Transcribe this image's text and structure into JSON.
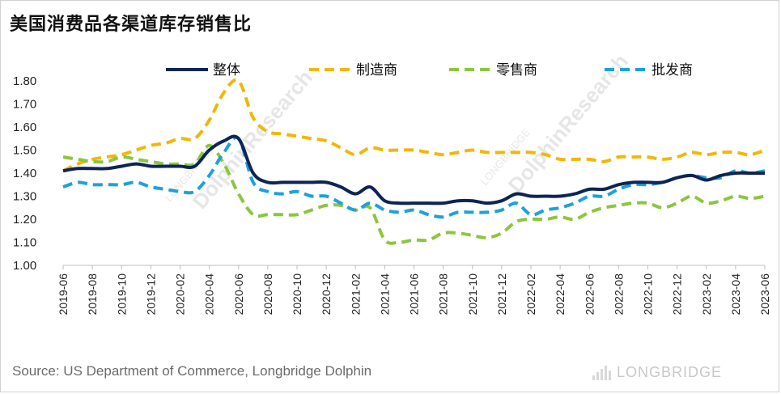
{
  "title": "美国消费品各渠道库存销售比",
  "source": "Source: US Department of Commerce, Longbridge Dolphin",
  "brand": "LONGBRIDGE",
  "watermark_main": "DolphinResearch",
  "watermark_sub": "LONGBRIDGE",
  "chart_data": {
    "type": "line",
    "title": "美国消费品各渠道库存销售比",
    "xlabel": "",
    "ylabel": "",
    "ylim": [
      1.0,
      1.8
    ],
    "yticks": [
      "1.00",
      "1.10",
      "1.20",
      "1.30",
      "1.40",
      "1.50",
      "1.60",
      "1.70",
      "1.80"
    ],
    "legend_position": "top",
    "grid": false,
    "x": [
      "2019-06",
      "2019-07",
      "2019-08",
      "2019-09",
      "2019-10",
      "2019-11",
      "2019-12",
      "2020-01",
      "2020-02",
      "2020-03",
      "2020-04",
      "2020-05",
      "2020-06",
      "2020-07",
      "2020-08",
      "2020-09",
      "2020-10",
      "2020-11",
      "2020-12",
      "2021-01",
      "2021-02",
      "2021-03",
      "2021-04",
      "2021-05",
      "2021-06",
      "2021-07",
      "2021-08",
      "2021-09",
      "2021-10",
      "2021-11",
      "2021-12",
      "2022-01",
      "2022-02",
      "2022-03",
      "2022-04",
      "2022-05",
      "2022-06",
      "2022-07",
      "2022-08",
      "2022-09",
      "2022-10",
      "2022-11",
      "2022-12",
      "2023-01",
      "2023-02",
      "2023-03",
      "2023-04",
      "2023-05",
      "2023-06"
    ],
    "xticks": [
      "2019-06",
      "2019-08",
      "2019-10",
      "2019-12",
      "2020-02",
      "2020-04",
      "2020-06",
      "2020-08",
      "2020-10",
      "2020-12",
      "2021-02",
      "2021-04",
      "2021-06",
      "2021-08",
      "2021-10",
      "2021-12",
      "2022-02",
      "2022-04",
      "2022-06",
      "2022-08",
      "2022-10",
      "2022-12",
      "2023-02",
      "2023-04",
      "2023-06"
    ],
    "series": [
      {
        "name": "整体",
        "color": "#0d2456",
        "dash": "solid",
        "values": [
          1.41,
          1.42,
          1.42,
          1.42,
          1.43,
          1.44,
          1.43,
          1.43,
          1.43,
          1.43,
          1.5,
          1.54,
          1.55,
          1.4,
          1.36,
          1.36,
          1.36,
          1.36,
          1.36,
          1.34,
          1.31,
          1.34,
          1.28,
          1.27,
          1.27,
          1.27,
          1.27,
          1.28,
          1.28,
          1.27,
          1.28,
          1.31,
          1.3,
          1.3,
          1.3,
          1.31,
          1.33,
          1.33,
          1.35,
          1.36,
          1.36,
          1.36,
          1.38,
          1.39,
          1.37,
          1.39,
          1.4,
          1.4,
          1.4
        ]
      },
      {
        "name": "制造商",
        "color": "#f2b705",
        "dash": "dashed",
        "values": [
          1.41,
          1.44,
          1.46,
          1.47,
          1.48,
          1.5,
          1.52,
          1.53,
          1.55,
          1.55,
          1.63,
          1.75,
          1.8,
          1.64,
          1.58,
          1.57,
          1.56,
          1.55,
          1.54,
          1.51,
          1.48,
          1.51,
          1.5,
          1.5,
          1.5,
          1.49,
          1.48,
          1.49,
          1.5,
          1.49,
          1.49,
          1.49,
          1.49,
          1.48,
          1.46,
          1.46,
          1.46,
          1.45,
          1.47,
          1.47,
          1.47,
          1.46,
          1.47,
          1.49,
          1.48,
          1.49,
          1.49,
          1.48,
          1.5
        ]
      },
      {
        "name": "零售商",
        "color": "#8cc63e",
        "dash": "dashed",
        "values": [
          1.47,
          1.46,
          1.45,
          1.45,
          1.47,
          1.46,
          1.45,
          1.44,
          1.44,
          1.44,
          1.52,
          1.44,
          1.31,
          1.22,
          1.22,
          1.22,
          1.22,
          1.24,
          1.26,
          1.26,
          1.24,
          1.25,
          1.11,
          1.1,
          1.11,
          1.11,
          1.14,
          1.14,
          1.13,
          1.12,
          1.14,
          1.19,
          1.2,
          1.2,
          1.21,
          1.2,
          1.23,
          1.25,
          1.26,
          1.27,
          1.27,
          1.25,
          1.27,
          1.3,
          1.27,
          1.28,
          1.3,
          1.29,
          1.3
        ]
      },
      {
        "name": "批发商",
        "color": "#1da1dc",
        "dash": "dashed",
        "values": [
          1.34,
          1.36,
          1.35,
          1.35,
          1.35,
          1.36,
          1.34,
          1.33,
          1.32,
          1.32,
          1.39,
          1.49,
          1.55,
          1.36,
          1.32,
          1.31,
          1.32,
          1.3,
          1.3,
          1.27,
          1.24,
          1.27,
          1.24,
          1.23,
          1.24,
          1.22,
          1.21,
          1.23,
          1.23,
          1.23,
          1.24,
          1.27,
          1.22,
          1.24,
          1.25,
          1.27,
          1.3,
          1.3,
          1.33,
          1.35,
          1.35,
          1.36,
          1.38,
          1.39,
          1.38,
          1.38,
          1.41,
          1.4,
          1.41
        ]
      }
    ]
  }
}
